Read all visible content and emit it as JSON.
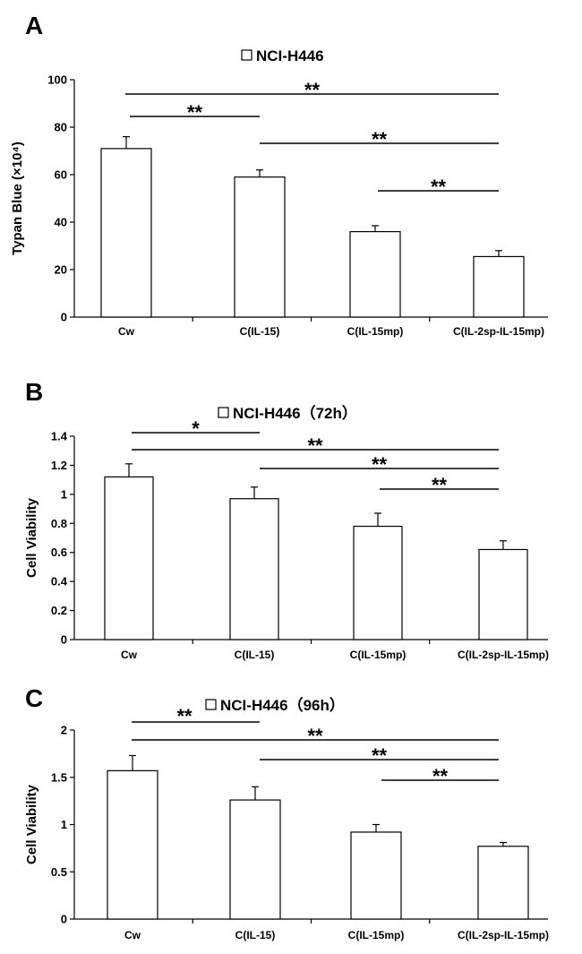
{
  "chart_data": [
    {
      "type": "bar",
      "panel": "A",
      "title": "NCI-H446",
      "xlabel": "",
      "ylabel": "Typan Blue (×10⁴)",
      "ylim": [
        0,
        100
      ],
      "yticks": [
        "0",
        "20",
        "40",
        "60",
        "80",
        "100"
      ],
      "categories": [
        "Cw",
        "C(IL-15)",
        "C(IL-15mp)",
        "C(IL-2sp-IL-15mp)"
      ],
      "values": [
        71,
        59,
        36,
        25.5
      ],
      "errors": [
        5,
        3,
        2.5,
        2.5
      ],
      "significance": [
        {
          "from": 0,
          "to": 3,
          "label": "**"
        },
        {
          "from": 0,
          "to": 1,
          "label": "**"
        },
        {
          "from": 1,
          "to": 3,
          "label": "**"
        },
        {
          "from": 2,
          "to": 3,
          "label": "**"
        }
      ]
    },
    {
      "type": "bar",
      "panel": "B",
      "title": "NCI-H446（72h）",
      "xlabel": "",
      "ylabel": "Cell Viability",
      "ylim": [
        0,
        1.4
      ],
      "yticks": [
        "0",
        "0.2",
        "0.4",
        "0.6",
        "0.8",
        "1",
        "1.2",
        "1.4"
      ],
      "categories": [
        "Cw",
        "C(IL-15)",
        "C(IL-15mp)",
        "C(IL-2sp-IL-15mp)"
      ],
      "values": [
        1.12,
        0.97,
        0.78,
        0.62
      ],
      "errors": [
        0.09,
        0.08,
        0.09,
        0.06
      ],
      "significance": [
        {
          "from": 0,
          "to": 1,
          "label": "*"
        },
        {
          "from": 0,
          "to": 3,
          "label": "**"
        },
        {
          "from": 1,
          "to": 3,
          "label": "**"
        },
        {
          "from": 2,
          "to": 3,
          "label": "**"
        }
      ]
    },
    {
      "type": "bar",
      "panel": "C",
      "title": "NCI-H446（96h）",
      "xlabel": "",
      "ylabel": "Cell Viability",
      "ylim": [
        0,
        2
      ],
      "yticks": [
        "0",
        "0.5",
        "1",
        "1.5",
        "2"
      ],
      "categories": [
        "Cw",
        "C(IL-15)",
        "C(IL-15mp)",
        "C(IL-2sp-IL-15mp)"
      ],
      "values": [
        1.57,
        1.26,
        0.92,
        0.77
      ],
      "errors": [
        0.16,
        0.14,
        0.08,
        0.04
      ],
      "significance": [
        {
          "from": 0,
          "to": 1,
          "label": "**"
        },
        {
          "from": 0,
          "to": 3,
          "label": "**"
        },
        {
          "from": 1,
          "to": 3,
          "label": "**"
        },
        {
          "from": 2,
          "to": 3,
          "label": "**"
        }
      ]
    }
  ]
}
